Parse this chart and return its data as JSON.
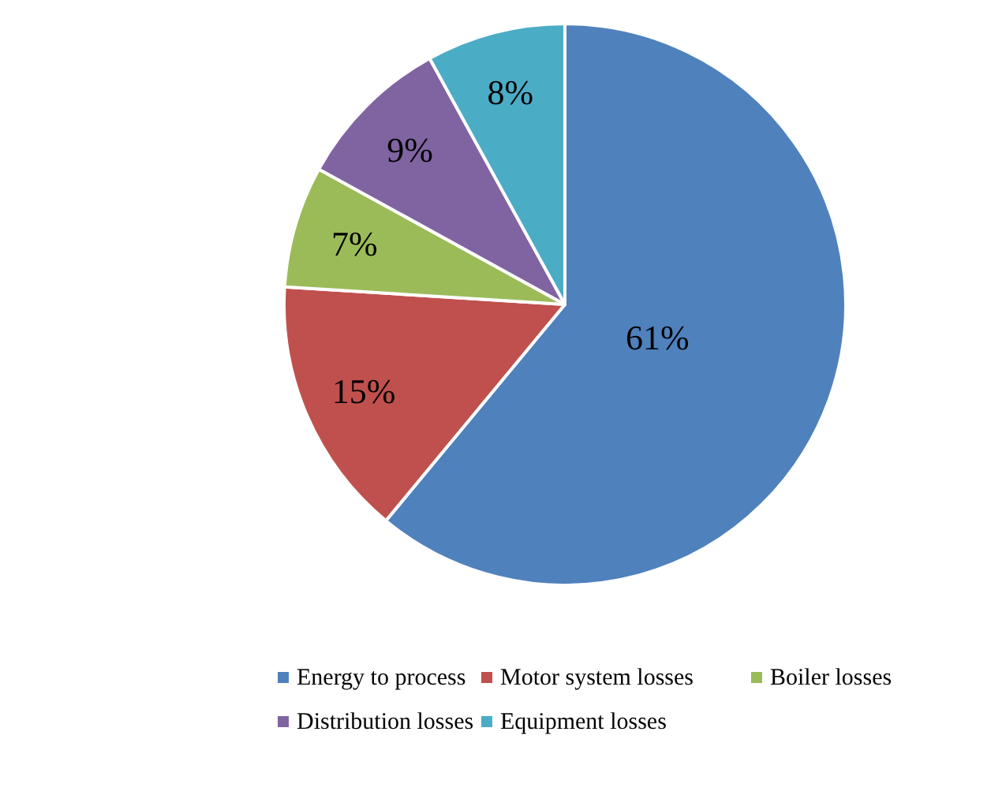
{
  "chart_data": {
    "type": "pie",
    "categories": [
      "Energy to process",
      "Motor system losses",
      "Boiler losses",
      "Distribution losses",
      "Equipment losses"
    ],
    "values": [
      61,
      15,
      7,
      9,
      8
    ],
    "colors": [
      "#4f81bd",
      "#c0504d",
      "#9bbb59",
      "#8064a2",
      "#4bacc6"
    ],
    "value_labels": [
      "61%",
      "15%",
      "7%",
      "9%",
      "8%"
    ],
    "legend": "bottom"
  }
}
